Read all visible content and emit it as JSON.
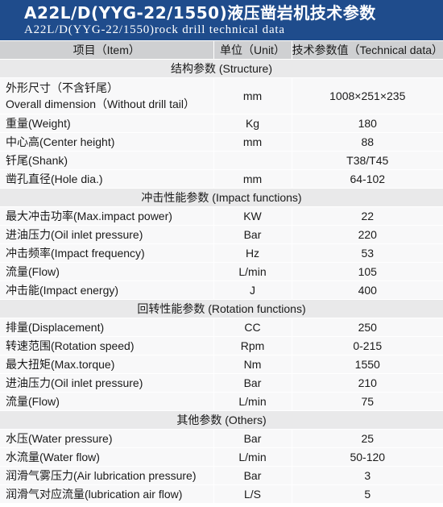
{
  "header": {
    "title_cn": "A22L/D(YYG-22/1550)液压凿岩机技术参数",
    "title_en": "A22L/D(YYG-22/1550)rock drill technical data"
  },
  "columns": {
    "item": "项目（Item）",
    "unit": "单位（Unit）",
    "value": "技术参数值（Technical data）"
  },
  "sections": [
    {
      "title": "结构参数 (Structure)",
      "rows": [
        {
          "item": "外形尺寸（不含钎尾）",
          "item2": "Overall dimension（Without drill tail）",
          "unit": "mm",
          "value": "1008×251×235"
        },
        {
          "item": "重量(Weight)",
          "unit": "Kg",
          "value": "180"
        },
        {
          "item": "中心高(Center height)",
          "unit": "mm",
          "value": "88"
        },
        {
          "item": "钎尾(Shank)",
          "unit": "",
          "value": "T38/T45"
        },
        {
          "item": "凿孔直径(Hole dia.)",
          "unit": "mm",
          "value": "64-102"
        }
      ]
    },
    {
      "title": "冲击性能参数 (Impact functions)",
      "rows": [
        {
          "item": "最大冲击功率(Max.impact power)",
          "unit": "KW",
          "value": "22"
        },
        {
          "item": "进油压力(Oil inlet pressure)",
          "unit": "Bar",
          "value": "220"
        },
        {
          "item": "冲击频率(Impact frequency)",
          "unit": "Hz",
          "value": "53"
        },
        {
          "item": "流量(Flow)",
          "unit": "L/min",
          "value": "105"
        },
        {
          "item": "冲击能(Impact energy)",
          "unit": "J",
          "value": "400"
        }
      ]
    },
    {
      "title": "回转性能参数 (Rotation functions)",
      "rows": [
        {
          "item": "排量(Displacement)",
          "unit": "CC",
          "value": "250"
        },
        {
          "item": "转速范围(Rotation speed)",
          "unit": "Rpm",
          "value": "0-215"
        },
        {
          "item": "最大扭矩(Max.torque)",
          "unit": "Nm",
          "value": "1550"
        },
        {
          "item": "进油压力(Oil inlet pressure)",
          "unit": "Bar",
          "value": "210"
        },
        {
          "item": "流量(Flow)",
          "unit": "L/min",
          "value": "75"
        }
      ]
    },
    {
      "title": "其他参数 (Others)",
      "rows": [
        {
          "item": "水压(Water pressure)",
          "unit": "Bar",
          "value": "25"
        },
        {
          "item": "水流量(Water flow)",
          "unit": "L/min",
          "value": "50-120"
        },
        {
          "item": "润滑气雾压力(Air lubrication pressure)",
          "unit": "Bar",
          "value": "3"
        },
        {
          "item": "润滑气对应流量(lubrication air flow)",
          "unit": "L/S",
          "value": "5"
        }
      ]
    }
  ]
}
